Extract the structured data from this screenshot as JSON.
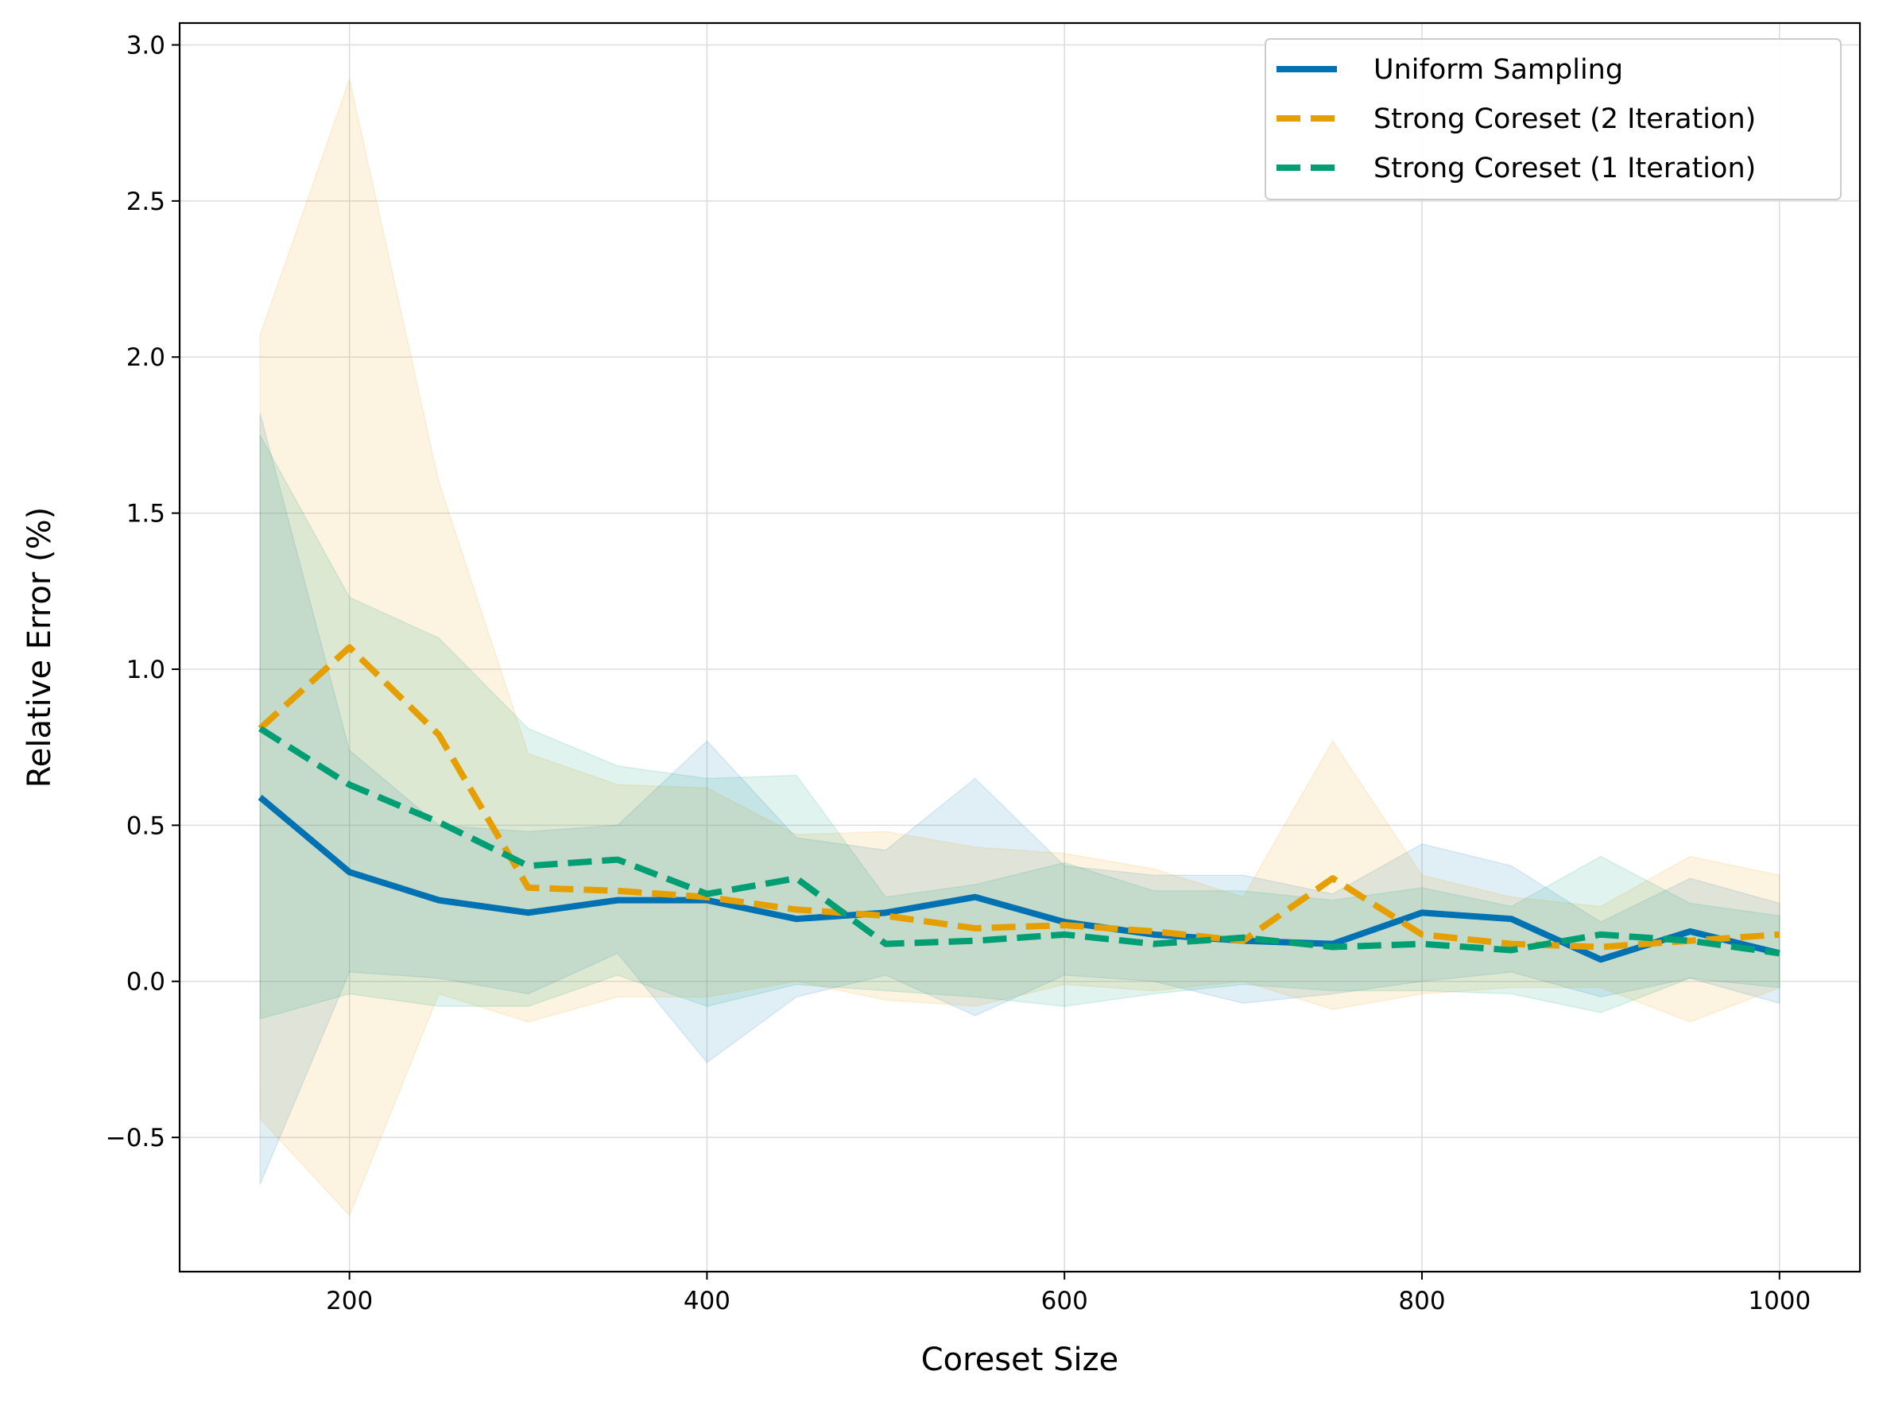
{
  "chart_data": {
    "type": "line",
    "title": "",
    "xlabel": "Coreset Size",
    "ylabel": "Relative Error (%)",
    "xlim": [
      105,
      1045
    ],
    "ylim": [
      -0.93,
      3.07
    ],
    "xticks": [
      200,
      400,
      600,
      800,
      1000
    ],
    "yticks": [
      -0.5,
      0.0,
      0.5,
      1.0,
      1.5,
      2.0,
      2.5,
      3.0
    ],
    "xtick_labels": [
      "200",
      "400",
      "600",
      "800",
      "1000"
    ],
    "ytick_labels": [
      "−0.5",
      "0.0",
      "0.5",
      "1.0",
      "1.5",
      "2.0",
      "2.5",
      "3.0"
    ],
    "grid": true,
    "legend": "top-right",
    "x": [
      150,
      200,
      250,
      300,
      350,
      400,
      450,
      500,
      550,
      600,
      650,
      700,
      750,
      800,
      850,
      900,
      950,
      1000
    ],
    "series": [
      {
        "name": "Uniform Sampling",
        "color": "#0072B2",
        "linestyle": "solid",
        "values": [
          0.59,
          0.35,
          0.26,
          0.22,
          0.26,
          0.26,
          0.2,
          0.22,
          0.27,
          0.19,
          0.15,
          0.13,
          0.12,
          0.22,
          0.2,
          0.07,
          0.16,
          0.09
        ],
        "lower": [
          -0.65,
          0.03,
          0.01,
          -0.04,
          0.09,
          -0.26,
          -0.05,
          0.02,
          -0.11,
          0.02,
          0.0,
          -0.07,
          -0.04,
          0.0,
          0.03,
          -0.05,
          0.01,
          -0.07
        ],
        "upper": [
          1.82,
          0.74,
          0.5,
          0.48,
          0.5,
          0.77,
          0.46,
          0.42,
          0.65,
          0.37,
          0.34,
          0.34,
          0.28,
          0.44,
          0.37,
          0.19,
          0.33,
          0.25
        ]
      },
      {
        "name": "Strong Coreset (2 Iteration)",
        "color": "#E69F00",
        "linestyle": "dashed",
        "values": [
          0.81,
          1.07,
          0.79,
          0.3,
          0.29,
          0.27,
          0.23,
          0.21,
          0.17,
          0.18,
          0.16,
          0.13,
          0.33,
          0.15,
          0.12,
          0.11,
          0.13,
          0.15
        ],
        "lower": [
          -0.44,
          -0.75,
          -0.04,
          -0.13,
          -0.05,
          -0.05,
          0.0,
          -0.06,
          -0.08,
          -0.01,
          -0.03,
          0.0,
          -0.09,
          -0.04,
          -0.02,
          -0.02,
          -0.13,
          -0.02
        ],
        "upper": [
          2.07,
          2.89,
          1.6,
          0.73,
          0.63,
          0.62,
          0.47,
          0.48,
          0.43,
          0.41,
          0.36,
          0.27,
          0.77,
          0.34,
          0.27,
          0.24,
          0.4,
          0.34
        ]
      },
      {
        "name": "Strong Coreset (1 Iteration)",
        "color": "#009E73",
        "linestyle": "dashed",
        "values": [
          0.81,
          0.63,
          0.51,
          0.37,
          0.39,
          0.28,
          0.33,
          0.12,
          0.13,
          0.15,
          0.12,
          0.14,
          0.11,
          0.12,
          0.1,
          0.15,
          0.13,
          0.09
        ],
        "lower": [
          -0.12,
          -0.04,
          -0.08,
          -0.08,
          0.02,
          -0.08,
          -0.01,
          -0.03,
          -0.05,
          -0.08,
          -0.04,
          -0.01,
          -0.03,
          -0.03,
          -0.04,
          -0.1,
          0.01,
          -0.02
        ],
        "upper": [
          1.75,
          1.23,
          1.1,
          0.81,
          0.69,
          0.65,
          0.66,
          0.27,
          0.31,
          0.38,
          0.29,
          0.29,
          0.26,
          0.3,
          0.24,
          0.4,
          0.25,
          0.21
        ]
      }
    ]
  }
}
